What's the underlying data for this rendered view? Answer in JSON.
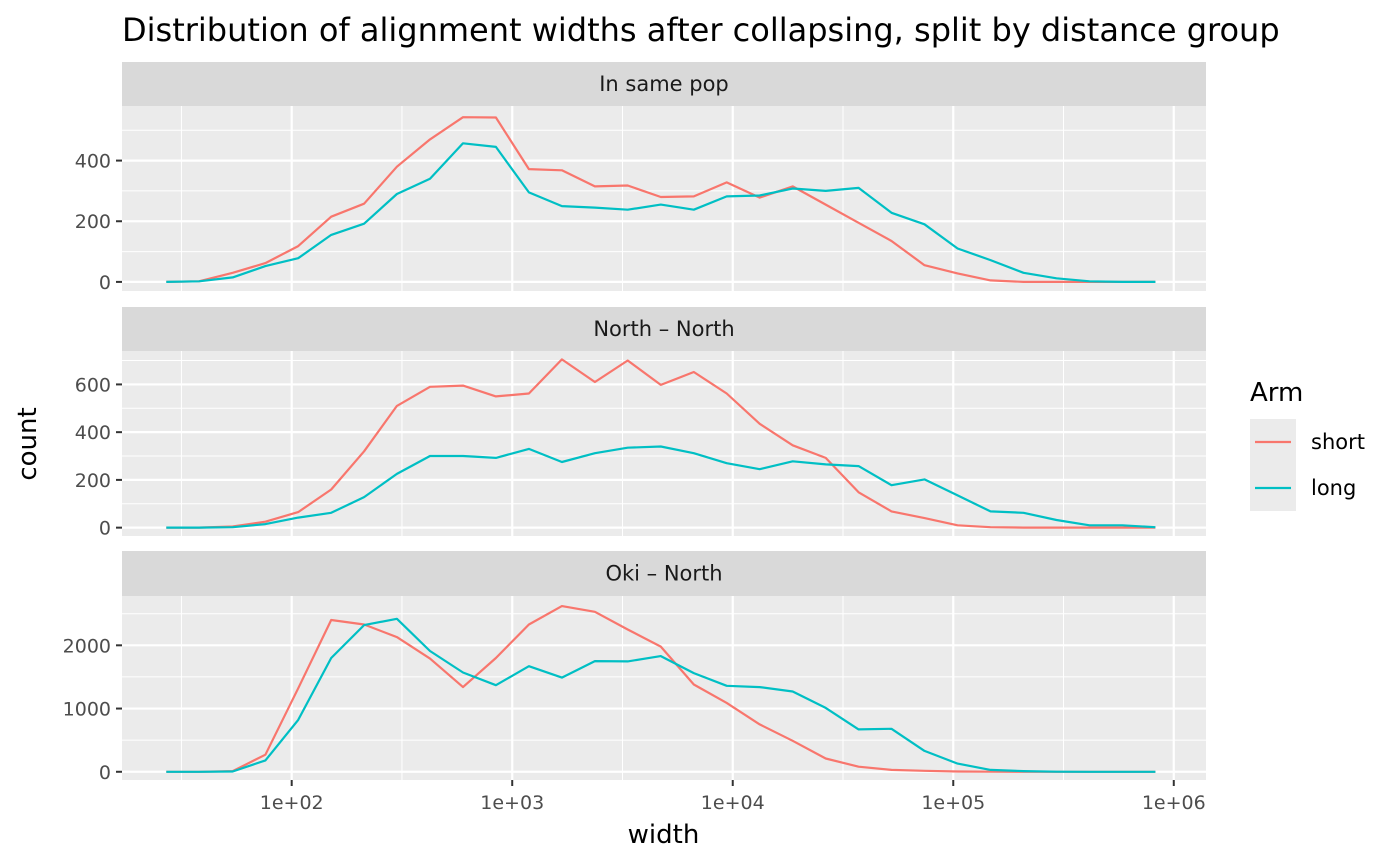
{
  "chart_data": {
    "type": "line",
    "title": "Distribution of alignment widths after collapsing, split by distance group",
    "xlabel": "width",
    "ylabel": "count",
    "x_scale": "log10",
    "xlim": [
      17,
      1400000
    ],
    "x_tick_values": [
      100,
      1000,
      10000,
      100000,
      1000000
    ],
    "x_tick_labels": [
      "1e+02",
      "1e+03",
      "1e+04",
      "1e+05",
      "1e+06"
    ],
    "grid": true,
    "legend": {
      "title": "Arm",
      "position": "right",
      "entries": [
        {
          "label": "short",
          "color": "#F8766D"
        },
        {
          "label": "long",
          "color": "#00BFC4"
        }
      ]
    },
    "x": [
      27,
      38,
      54,
      76,
      107,
      151,
      213,
      300,
      424,
      598,
      843,
      1190,
      1680,
      2370,
      3340,
      4720,
      6660,
      9390,
      13250,
      18700,
      26400,
      37200,
      52500,
      74100,
      104600,
      147500,
      208200,
      293800,
      414600,
      585000,
      825000
    ],
    "panels": [
      {
        "strip": "In same pop",
        "ylim": [
          -30,
          580
        ],
        "y_ticks": [
          0,
          200,
          400
        ],
        "y_tick_labels": [
          "0",
          "200",
          "400"
        ],
        "series": [
          {
            "name": "short",
            "color": "#F8766D",
            "values": [
              0,
              2,
              30,
              62,
              118,
              215,
              258,
              380,
              470,
              543,
              542,
              372,
              368,
              315,
              318,
              280,
              282,
              328,
              278,
              315,
              255,
              195,
              135,
              55,
              28,
              5,
              0,
              0,
              0,
              0,
              0
            ]
          },
          {
            "name": "long",
            "color": "#00BFC4",
            "values": [
              0,
              2,
              15,
              52,
              78,
              155,
              192,
              290,
              340,
              457,
              445,
              295,
              250,
              245,
              238,
              255,
              238,
              282,
              285,
              308,
              300,
              310,
              228,
              190,
              110,
              72,
              30,
              12,
              2,
              0,
              0
            ]
          }
        ]
      },
      {
        "strip": "North – North",
        "ylim": [
          -35,
          740
        ],
        "y_ticks": [
          0,
          200,
          400,
          600
        ],
        "y_tick_labels": [
          "0",
          "200",
          "400",
          "600"
        ],
        "series": [
          {
            "name": "short",
            "color": "#F8766D",
            "values": [
              0,
              0,
              5,
              25,
              65,
              160,
              320,
              510,
              590,
              595,
              550,
              562,
              705,
              610,
              700,
              598,
              652,
              562,
              435,
              345,
              292,
              148,
              68,
              40,
              10,
              2,
              0,
              0,
              0,
              0,
              0
            ]
          },
          {
            "name": "long",
            "color": "#00BFC4",
            "values": [
              0,
              0,
              2,
              15,
              42,
              62,
              128,
              225,
              300,
              300,
              292,
              330,
              275,
              312,
              335,
              340,
              312,
              270,
              245,
              278,
              265,
              258,
              178,
              202,
              135,
              68,
              62,
              32,
              10,
              10,
              2
            ]
          }
        ]
      },
      {
        "strip": "Oki – North",
        "ylim": [
          -130,
          2780
        ],
        "y_ticks": [
          0,
          1000,
          2000
        ],
        "y_tick_labels": [
          "0",
          "1000",
          "2000"
        ],
        "series": [
          {
            "name": "short",
            "color": "#F8766D",
            "values": [
              0,
              0,
              10,
              270,
              1320,
              2400,
              2330,
              2130,
              1790,
              1340,
              1800,
              2330,
              2620,
              2530,
              2250,
              1980,
              1380,
              1090,
              750,
              490,
              210,
              80,
              30,
              15,
              5,
              2,
              0,
              0,
              0,
              0,
              0
            ]
          },
          {
            "name": "long",
            "color": "#00BFC4",
            "values": [
              0,
              0,
              5,
              180,
              820,
              1800,
              2320,
              2420,
              1910,
              1570,
              1370,
              1670,
              1490,
              1750,
              1745,
              1830,
              1560,
              1360,
              1340,
              1270,
              1010,
              670,
              680,
              330,
              130,
              30,
              10,
              2,
              0,
              0,
              0
            ]
          }
        ]
      }
    ]
  }
}
